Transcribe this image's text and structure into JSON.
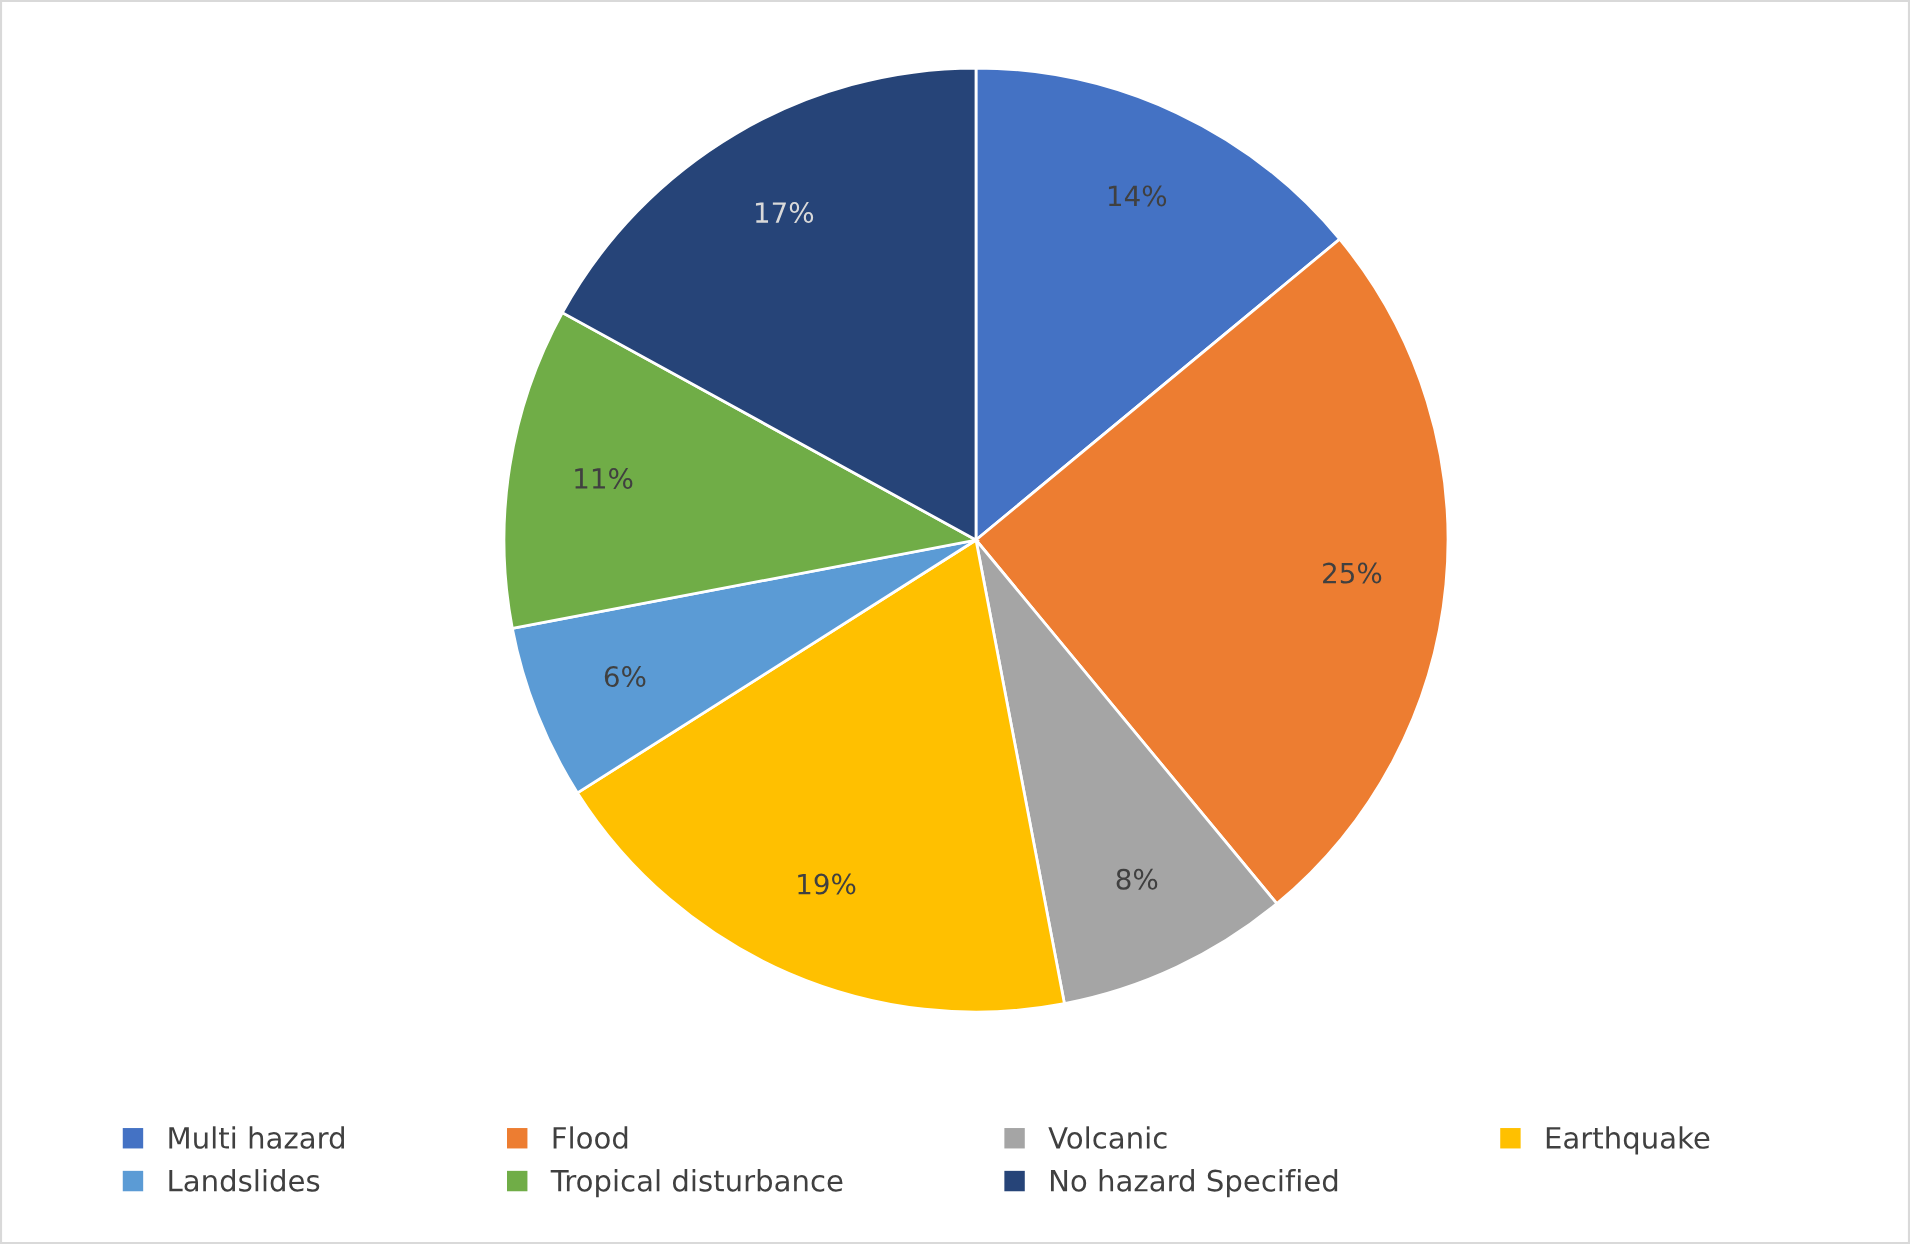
{
  "chart_data": {
    "type": "pie",
    "categories": [
      "Multi hazard",
      "Flood",
      "Volcanic",
      "Earthquake",
      "Landslides",
      "Tropical disturbance",
      "No hazard Specified"
    ],
    "values": [
      14,
      25,
      8,
      19,
      6,
      11,
      17
    ],
    "value_labels": [
      "14%",
      "25%",
      "8%",
      "19%",
      "6%",
      "11%",
      "17%"
    ],
    "colors": [
      "#4472c4",
      "#ed7d31",
      "#a5a5a5",
      "#ffc000",
      "#5b9bd5",
      "#70ad47",
      "#264478"
    ],
    "legend": "bottom"
  }
}
